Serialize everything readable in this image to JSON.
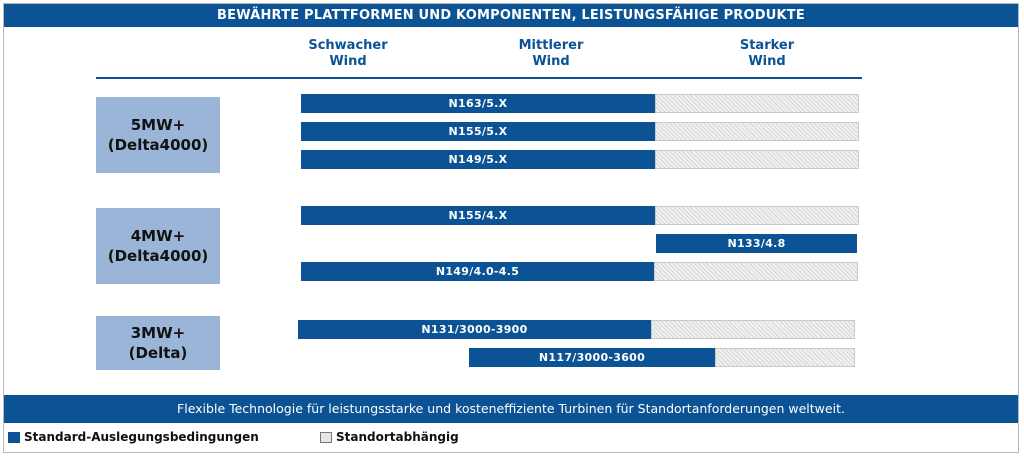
{
  "header": {
    "title": "BEWÄHRTE PLATTFORMEN UND KOMPONENTEN, LEISTUNGSFÄHIGE PRODUKTE"
  },
  "columns": [
    {
      "line1": "Schwacher",
      "line2": "Wind"
    },
    {
      "line1": "Mittlerer",
      "line2": "Wind"
    },
    {
      "line1": "Starker",
      "line2": "Wind"
    }
  ],
  "platforms": [
    {
      "line1": "5MW+",
      "line2": "(Delta4000)"
    },
    {
      "line1": "4MW+",
      "line2": "(Delta4000)"
    },
    {
      "line1": "3MW+",
      "line2": "(Delta)"
    }
  ],
  "turbines": [
    {
      "label": "N163/5.X"
    },
    {
      "label": "N155/5.X"
    },
    {
      "label": "N149/5.X"
    },
    {
      "label": "N155/4.X"
    },
    {
      "label": "N133/4.8"
    },
    {
      "label": "N149/4.0-4.5"
    },
    {
      "label": "N131/3000-3900"
    },
    {
      "label": "N117/3000-3600"
    }
  ],
  "footer": {
    "text": "Flexible Technologie für leistungsstarke und kosteneffiziente Turbinen für Standortanforderungen weltweit."
  },
  "legend": {
    "standard": "Standard-Auslegungsbedingungen",
    "site": "Standortabhängig"
  },
  "colors": {
    "primary": "#0b5394",
    "platform_box": "#9bb5d8"
  }
}
